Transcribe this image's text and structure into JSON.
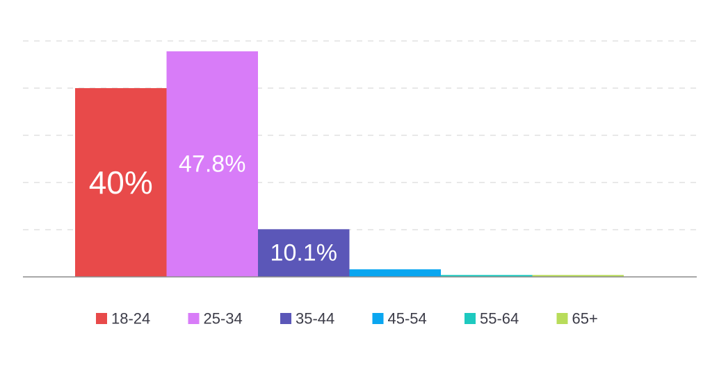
{
  "chart_data": {
    "type": "bar",
    "title": "",
    "xlabel": "",
    "ylabel": "",
    "ylim": [
      0,
      50
    ],
    "grid": true,
    "legend_position": "bottom",
    "categories": [
      "18-24",
      "25-34",
      "35-44",
      "45-54",
      "55-64",
      "65+"
    ],
    "values": [
      40,
      47.8,
      10.1,
      1.6,
      0.4,
      0.4
    ],
    "data_labels": [
      "40%",
      "47.8%",
      "10.1%",
      "",
      "",
      ""
    ],
    "colors": [
      "#e84a4a",
      "#d87cf8",
      "#5b57b8",
      "#0aa6f0",
      "#1ec9bf",
      "#b8dc5a"
    ]
  }
}
